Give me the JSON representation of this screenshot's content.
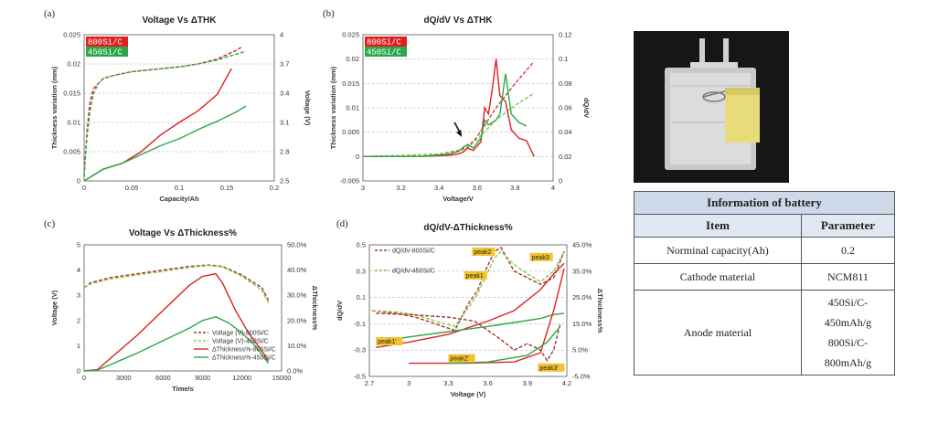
{
  "panels": {
    "a": {
      "label": "(a)",
      "chart_data": {
        "type": "line",
        "title": "Voltage Vs ΔTHK",
        "xlabel": "Capacity/Ah",
        "ylabel": "Thickness variation (mm)",
        "y2label": "Voltage (V)",
        "xlim": [
          0,
          0.2
        ],
        "ylim": [
          0,
          0.025
        ],
        "y2lim": [
          2.5,
          4
        ],
        "xticks": [
          "0",
          "0.05",
          "0.1",
          "0.15",
          "0.2"
        ],
        "yticks": [
          "0",
          "0.005",
          "0.01",
          "0.015",
          "0.02",
          "0.025"
        ],
        "y2ticks": [
          "2.5",
          "2.8",
          "3.1",
          "3.4",
          "3.7",
          "4"
        ],
        "legend": [
          "800Si/C",
          "450Si/C"
        ],
        "series": [
          {
            "name": "800Si/C",
            "axis": "right",
            "dashed": true,
            "color": "#e02020",
            "x": [
              0,
              0.003,
              0.006,
              0.01,
              0.015,
              0.02,
              0.03,
              0.05,
              0.08,
              0.1,
              0.12,
              0.14,
              0.16,
              0.165
            ],
            "y": [
              2.55,
              3.0,
              3.3,
              3.45,
              3.5,
              3.55,
              3.58,
              3.62,
              3.65,
              3.67,
              3.7,
              3.75,
              3.84,
              3.87
            ]
          },
          {
            "name": "450Si/C",
            "axis": "right",
            "dashed": true,
            "color": "#2aa84a",
            "x": [
              0,
              0.003,
              0.006,
              0.01,
              0.015,
              0.02,
              0.03,
              0.05,
              0.08,
              0.1,
              0.12,
              0.14,
              0.16,
              0.17
            ],
            "y": [
              2.55,
              2.95,
              3.2,
              3.4,
              3.5,
              3.55,
              3.58,
              3.62,
              3.65,
              3.67,
              3.7,
              3.74,
              3.8,
              3.83
            ]
          },
          {
            "name": "800Si/C",
            "axis": "left",
            "dashed": false,
            "color": "#e02020",
            "x": [
              0,
              0.005,
              0.01,
              0.02,
              0.04,
              0.06,
              0.08,
              0.1,
              0.12,
              0.14,
              0.155
            ],
            "y": [
              0,
              0.0005,
              0.001,
              0.002,
              0.003,
              0.005,
              0.0078,
              0.01,
              0.012,
              0.0148,
              0.0192
            ]
          },
          {
            "name": "450Si/C",
            "axis": "left",
            "dashed": false,
            "color": "#2aa84a",
            "x": [
              0,
              0.005,
              0.01,
              0.02,
              0.04,
              0.06,
              0.08,
              0.1,
              0.12,
              0.14,
              0.16,
              0.17
            ],
            "y": [
              0,
              0.0005,
              0.001,
              0.002,
              0.003,
              0.0045,
              0.006,
              0.0072,
              0.0088,
              0.0102,
              0.0118,
              0.0128
            ]
          }
        ]
      }
    },
    "b": {
      "label": "(b)",
      "chart_data": {
        "type": "line",
        "title": "dQ/dV Vs ΔTHK",
        "xlabel": "Voltage/V",
        "ylabel": "Thickness variation (mm)",
        "y2label": "dQ/dV",
        "xlim": [
          3,
          4
        ],
        "ylim": [
          -0.005,
          0.025
        ],
        "y2lim": [
          0,
          0.12
        ],
        "xticks": [
          "3",
          "3.2",
          "3.4",
          "3.6",
          "3.8",
          "4"
        ],
        "yticks": [
          "-0.005",
          "0",
          "0.005",
          "0.01",
          "0.015",
          "0.02",
          "0.025"
        ],
        "y2ticks": [
          "0",
          "0.02",
          "0.04",
          "0.06",
          "0.08",
          "0.1",
          "0.12"
        ],
        "legend": [
          "800Si/C",
          "450Si/C"
        ],
        "series": [
          {
            "name": "800Si/C",
            "axis": "left",
            "dashed": true,
            "color": "#c94040",
            "x": [
              3.0,
              3.2,
              3.4,
              3.5,
              3.55,
              3.6,
              3.7,
              3.8,
              3.9
            ],
            "y": [
              0,
              0.0002,
              0.0005,
              0.0012,
              0.002,
              0.004,
              0.01,
              0.015,
              0.0195
            ]
          },
          {
            "name": "450Si/C",
            "axis": "left",
            "dashed": true,
            "color": "#7ccc4a",
            "x": [
              3.0,
              3.2,
              3.4,
              3.5,
              3.55,
              3.6,
              3.7,
              3.8,
              3.9
            ],
            "y": [
              0,
              0.0002,
              0.0005,
              0.001,
              0.0018,
              0.0035,
              0.0075,
              0.0105,
              0.013
            ]
          },
          {
            "name": "800Si/C",
            "axis": "right",
            "dashed": false,
            "color": "#e02020",
            "x": [
              3.0,
              3.3,
              3.45,
              3.5,
              3.53,
              3.55,
              3.58,
              3.62,
              3.64,
              3.66,
              3.68,
              3.7,
              3.72,
              3.75,
              3.78,
              3.82,
              3.86,
              3.9
            ],
            "y": [
              0.02,
              0.02,
              0.021,
              0.022,
              0.024,
              0.027,
              0.025,
              0.032,
              0.06,
              0.055,
              0.075,
              0.1,
              0.07,
              0.065,
              0.042,
              0.035,
              0.033,
              0.02
            ]
          },
          {
            "name": "450Si/C",
            "axis": "right",
            "dashed": false,
            "color": "#2aa84a",
            "x": [
              3.0,
              3.3,
              3.45,
              3.5,
              3.53,
              3.55,
              3.58,
              3.62,
              3.64,
              3.66,
              3.68,
              3.7,
              3.72,
              3.75,
              3.78,
              3.82,
              3.86
            ],
            "y": [
              0.02,
              0.02,
              0.022,
              0.024,
              0.028,
              0.03,
              0.027,
              0.035,
              0.05,
              0.046,
              0.048,
              0.05,
              0.055,
              0.088,
              0.055,
              0.048,
              0.045
            ]
          }
        ]
      }
    },
    "c": {
      "label": "(c)",
      "chart_data": {
        "type": "line",
        "title": "Voltage Vs ΔThickness%",
        "xlabel": "Time/s",
        "ylabel": "Voltage (V)",
        "y2label": "ΔThickness%",
        "xlim": [
          0,
          15000
        ],
        "ylim": [
          0,
          5
        ],
        "y2lim": [
          0,
          50
        ],
        "xticks": [
          "0",
          "3000",
          "6000",
          "9000",
          "12000",
          "15000"
        ],
        "yticks": [
          "0",
          "1",
          "2",
          "3",
          "4",
          "5"
        ],
        "y2ticks": [
          "0.0%",
          "10.0%",
          "20.0%",
          "30.0%",
          "40.0%",
          "50.0%"
        ],
        "legend": [
          "Voltage (V)-800Si/C",
          "Voltage (V)-450Si/C",
          "ΔThickness%-800Si/C",
          "ΔThickness%-450Si/C"
        ],
        "series": [
          {
            "name": "Voltage (V)-800Si/C",
            "axis": "left",
            "dashed": true,
            "color": "#a83232",
            "x": [
              0,
              500,
              2000,
              4000,
              6000,
              8000,
              9500,
              10500,
              12000,
              13500,
              14000
            ],
            "y": [
              3.3,
              3.5,
              3.7,
              3.85,
              4.0,
              4.15,
              4.2,
              4.15,
              3.8,
              3.3,
              2.8
            ]
          },
          {
            "name": "Voltage (V)-450Si/C",
            "axis": "left",
            "dashed": true,
            "color": "#8acd4a",
            "x": [
              0,
              500,
              2000,
              4000,
              6000,
              8000,
              9500,
              10500,
              12000,
              13500,
              14000
            ],
            "y": [
              3.3,
              3.45,
              3.65,
              3.8,
              3.95,
              4.1,
              4.18,
              4.12,
              3.75,
              3.2,
              2.7
            ]
          },
          {
            "name": "ΔThickness%-800Si/C",
            "axis": "right",
            "dashed": false,
            "color": "#e02020",
            "x": [
              0,
              1000,
              2000,
              4000,
              6000,
              8000,
              9000,
              10000,
              10500,
              11500,
              12500,
              13500,
              14000
            ],
            "y": [
              0,
              0.5,
              5,
              14,
              24,
              34,
              37.5,
              38.5,
              35,
              24,
              15,
              8,
              4
            ]
          },
          {
            "name": "ΔThickness%-450Si/C",
            "axis": "right",
            "dashed": false,
            "color": "#2aa84a",
            "x": [
              0,
              1000,
              2000,
              4000,
              6000,
              8000,
              9000,
              10000,
              11000,
              12000,
              13000,
              14000
            ],
            "y": [
              0,
              0.3,
              2.5,
              7,
              12,
              17,
              20,
              21.5,
              19,
              15,
              10,
              3
            ]
          }
        ]
      }
    },
    "d": {
      "label": "(d)",
      "chart_data": {
        "type": "line",
        "title": "dQ/dV-ΔThickness%",
        "xlabel": "Voltage (V)",
        "ylabel": "dQ/dV",
        "y2label": "ΔThickness%",
        "xlim": [
          2.7,
          4.2
        ],
        "ylim": [
          -0.5,
          0.5
        ],
        "y2lim": [
          -5,
          45
        ],
        "xticks": [
          "2.7",
          "3",
          "3.3",
          "3.6",
          "3.9",
          "4.2"
        ],
        "yticks": [
          "-0.5",
          "-0.3",
          "-0.1",
          "0.1",
          "0.3",
          "0.5"
        ],
        "y2ticks": [
          "-5.0%",
          "5.0%",
          "15.0%",
          "25.0%",
          "35.0%",
          "45.0%"
        ],
        "legend": [
          "dQ/dV-800Si/C",
          "dQ/dV-450Si/C"
        ],
        "annotations": [
          "peak1'",
          "peak2'",
          "peak3'",
          "peak1",
          "peak2",
          "peak3"
        ],
        "series": [
          {
            "name": "dQ/dV-800Si/C",
            "axis": "left",
            "dashed": true,
            "color": "#a83232",
            "x": [
              2.72,
              2.9,
              3.05,
              3.2,
              3.35,
              3.45,
              3.52,
              3.58,
              3.65,
              3.7,
              3.8,
              3.9,
              4.0,
              4.1,
              4.18
            ],
            "y": [
              0.0,
              -0.02,
              -0.05,
              -0.1,
              -0.15,
              0.05,
              0.15,
              0.3,
              0.45,
              0.48,
              0.3,
              0.25,
              0.2,
              0.25,
              0.45
            ]
          },
          {
            "name": "dQ/dV-450Si/C",
            "axis": "left",
            "dashed": true,
            "color": "#8acd4a",
            "x": [
              2.72,
              2.9,
              3.05,
              3.2,
              3.35,
              3.45,
              3.52,
              3.58,
              3.65,
              3.7,
              3.8,
              3.9,
              4.0,
              4.1,
              4.18
            ],
            "y": [
              0.0,
              -0.01,
              -0.03,
              -0.08,
              -0.12,
              0.02,
              0.12,
              0.25,
              0.4,
              0.45,
              0.35,
              0.28,
              0.22,
              0.3,
              0.45
            ]
          },
          {
            "name": "dQ/dV-800Si/C-discharge",
            "axis": "left",
            "dashed": true,
            "color": "#a83232",
            "x": [
              2.75,
              3.0,
              3.3,
              3.5,
              3.6,
              3.7,
              3.8,
              3.9,
              4.0,
              4.05,
              4.1,
              4.15
            ],
            "y": [
              -0.02,
              -0.03,
              -0.05,
              -0.08,
              -0.15,
              -0.22,
              -0.3,
              -0.25,
              -0.3,
              -0.38,
              -0.3,
              -0.1
            ]
          },
          {
            "name": "ΔThickness%-800Si/C",
            "axis": "right",
            "dashed": false,
            "color": "#e02020",
            "x": [
              2.75,
              3.0,
              3.3,
              3.6,
              3.8,
              4.0,
              4.1,
              4.18
            ],
            "y": [
              6,
              8,
              11,
              16,
              20,
              28,
              34,
              38
            ]
          },
          {
            "name": "ΔThickness%-450Si/C",
            "axis": "right",
            "dashed": false,
            "color": "#2aa84a",
            "x": [
              2.75,
              3.0,
              3.3,
              3.6,
              3.8,
              4.0,
              4.1,
              4.18
            ],
            "y": [
              8,
              10,
              12,
              14,
              15.5,
              17,
              18.5,
              19
            ]
          },
          {
            "name": "ΔThickness%-800Si/C-discharge",
            "axis": "right",
            "dashed": false,
            "color": "#e02020",
            "x": [
              3.0,
              3.4,
              3.8,
              4.0,
              4.1,
              4.18
            ],
            "y": [
              0,
              0,
              0.5,
              4,
              20,
              36
            ]
          },
          {
            "name": "ΔThickness%-450Si/C-discharge",
            "axis": "right",
            "dashed": false,
            "color": "#2aa84a",
            "x": [
              3.3,
              3.6,
              3.9,
              4.05,
              4.15
            ],
            "y": [
              0,
              0.5,
              3,
              8,
              14
            ]
          }
        ]
      }
    }
  },
  "battery_table": {
    "title": "Information of battery",
    "col_item": "Item",
    "col_param": "Parameter",
    "rows": [
      {
        "item": "Norminal capacity(Ah)",
        "value": "0.2"
      },
      {
        "item": "Cathode material",
        "value": "NCM811"
      }
    ],
    "anode": {
      "item": "Anode material",
      "values": [
        "450Si/C-",
        "450mAh/g",
        "800Si/C-",
        "800mAh/g"
      ]
    }
  }
}
